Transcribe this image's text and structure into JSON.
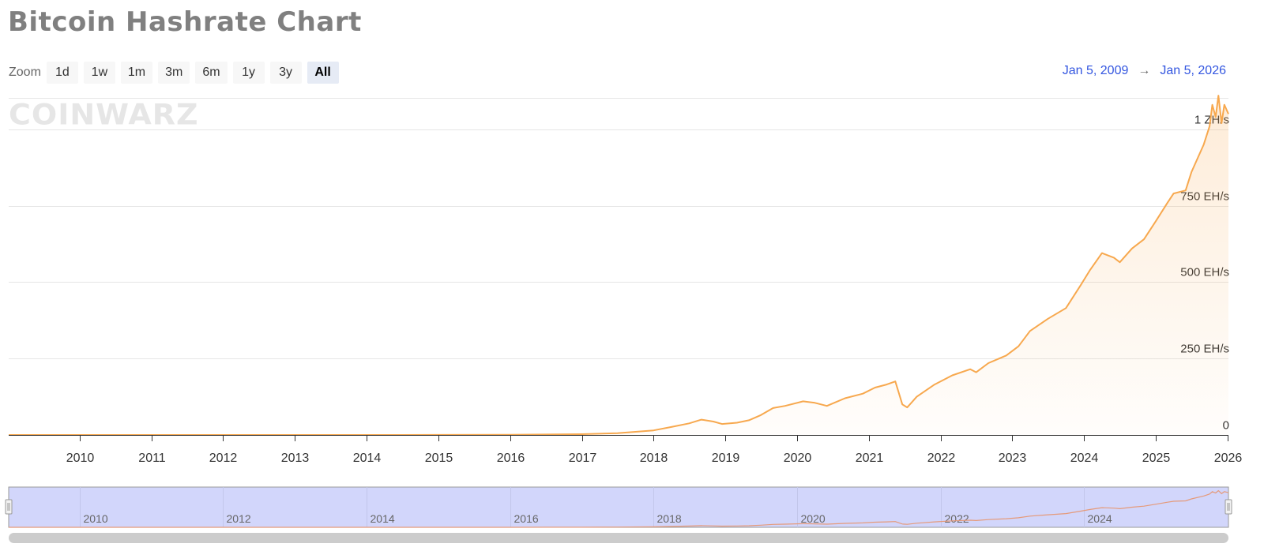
{
  "title": "Bitcoin Hashrate Chart",
  "zoom": {
    "label": "Zoom",
    "buttons": [
      "1d",
      "1w",
      "1m",
      "3m",
      "6m",
      "1y",
      "3y",
      "All"
    ],
    "active": "All"
  },
  "range": {
    "from": "Jan 5, 2009",
    "arrow": "→",
    "to": "Jan 5, 2026"
  },
  "watermark": "COINWARZ",
  "colors": {
    "line": "#f7a84e",
    "accent": "#3356e0",
    "navigator_fill": "#d2d6fb",
    "grid": "#e6e6e6"
  },
  "chart_data": {
    "type": "area",
    "unit": "EH/s",
    "ylim": [
      0,
      1100
    ],
    "y_ticks": [
      {
        "value": 0,
        "label": "0"
      },
      {
        "value": 250,
        "label": "250 EH/s"
      },
      {
        "value": 500,
        "label": "500 EH/s"
      },
      {
        "value": 750,
        "label": "750 EH/s"
      },
      {
        "value": 1000,
        "label": "1 ZH/s"
      }
    ],
    "xlim": [
      "2009-01-05",
      "2026-01-05"
    ],
    "x_ticks": [
      "2010",
      "2011",
      "2012",
      "2013",
      "2014",
      "2015",
      "2016",
      "2017",
      "2018",
      "2019",
      "2020",
      "2021",
      "2022",
      "2023",
      "2024",
      "2025",
      "2026"
    ],
    "navigator_ticks": [
      "2010",
      "2012",
      "2014",
      "2016",
      "2018",
      "2020",
      "2022",
      "2024"
    ],
    "series": [
      {
        "x": [
          "2009-01-05",
          "2012-01-01",
          "2014-01-01",
          "2015-01-01",
          "2016-01-01",
          "2016-07-01",
          "2017-01-01",
          "2017-07-01",
          "2018-01-01",
          "2018-04-01",
          "2018-07-01",
          "2018-09-01",
          "2018-11-01",
          "2018-12-15",
          "2019-03-01",
          "2019-05-01",
          "2019-07-01",
          "2019-09-01",
          "2019-11-01",
          "2020-02-01",
          "2020-04-01",
          "2020-06-01",
          "2020-09-01",
          "2020-12-01",
          "2021-02-01",
          "2021-04-01",
          "2021-05-15",
          "2021-06-20",
          "2021-07-15",
          "2021-09-01",
          "2021-12-01",
          "2022-03-01",
          "2022-06-01",
          "2022-07-01",
          "2022-09-01",
          "2022-12-01",
          "2023-02-01",
          "2023-04-01",
          "2023-07-01",
          "2023-10-01",
          "2023-12-15",
          "2024-02-01",
          "2024-04-01",
          "2024-06-01",
          "2024-07-01",
          "2024-09-01",
          "2024-11-01",
          "2025-01-01",
          "2025-03-01",
          "2025-04-01",
          "2025-06-01",
          "2025-07-01",
          "2025-09-01",
          "2025-10-01",
          "2025-10-15",
          "2025-11-01",
          "2025-11-15",
          "2025-12-01",
          "2025-12-15",
          "2026-01-05"
        ],
        "y": [
          0,
          0,
          0.01,
          0.3,
          0.8,
          1.5,
          2.5,
          6,
          15,
          26,
          38,
          50,
          44,
          36,
          40,
          48,
          65,
          88,
          95,
          110,
          105,
          95,
          120,
          135,
          155,
          165,
          175,
          100,
          90,
          125,
          165,
          195,
          215,
          205,
          235,
          260,
          290,
          340,
          380,
          415,
          490,
          540,
          595,
          580,
          565,
          610,
          640,
          700,
          760,
          790,
          800,
          860,
          950,
          1010,
          1080,
          1040,
          1110,
          1020,
          1080,
          1050
        ]
      }
    ]
  }
}
